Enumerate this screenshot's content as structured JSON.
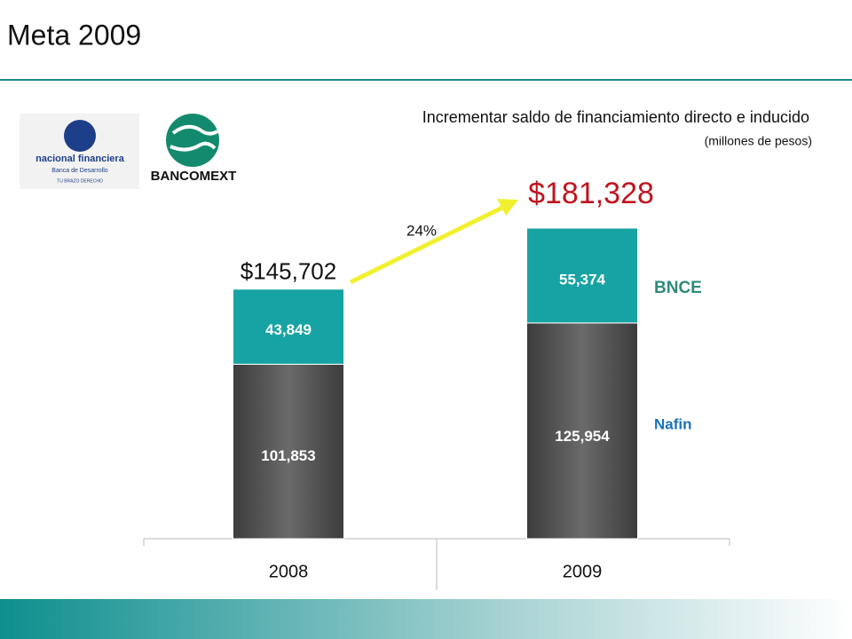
{
  "chart_data": {
    "type": "stacked_bar",
    "title": "Meta 2009",
    "subtitle": "Incrementar saldo de financiamiento directo e inducido",
    "units": "(millones de pesos)",
    "logos": {
      "nafin_name": "nacional financiera",
      "nafin_sub": "Banca de Desarrollo",
      "nafin_motto": "TU BRAZO DERECHO",
      "bancomext": "BANCOMEXT"
    },
    "categories": [
      "2008",
      "2009"
    ],
    "series": [
      {
        "name": "Nafin",
        "color": "#5a5a5a",
        "label_color": "#1a72b8",
        "values": [
          101853,
          125954
        ],
        "value_labels": [
          "101,853",
          "125,954"
        ]
      },
      {
        "name": "BNCE",
        "color": "#17a3a3",
        "label_color": "#2e8b7a",
        "values": [
          43849,
          55374
        ],
        "value_labels": [
          "43,849",
          "55,374"
        ]
      }
    ],
    "total_labels": [
      "$145,702",
      "$181,328"
    ],
    "growth_label": "24%"
  }
}
